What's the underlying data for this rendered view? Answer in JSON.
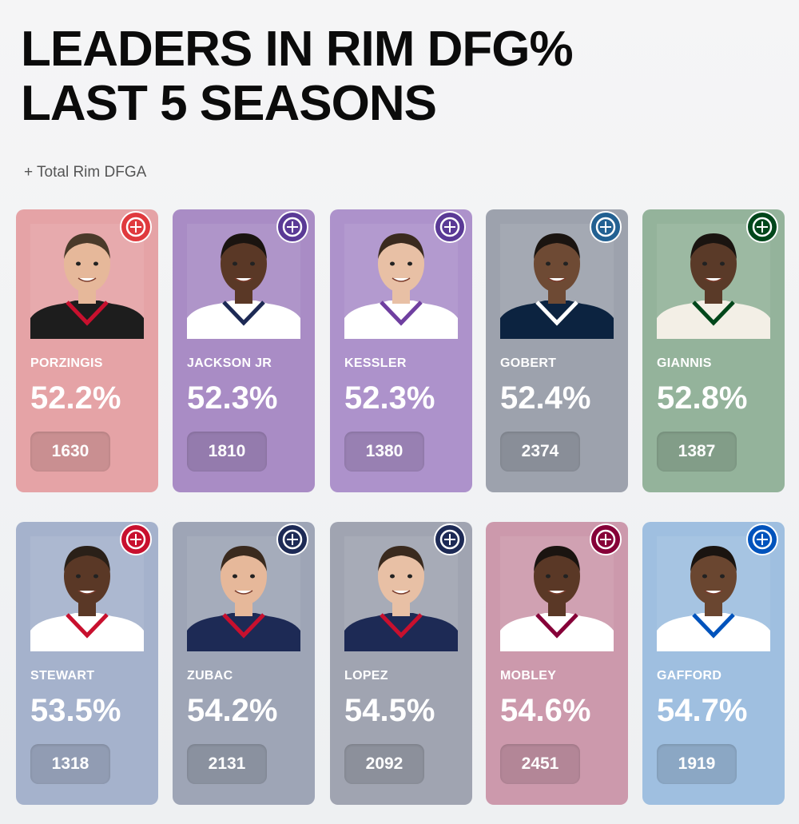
{
  "title_line1": "LEADERS IN RIM DFG%",
  "title_line2": "LAST 5 SEASONS",
  "subtitle": "+ Total Rim DFGA",
  "players": [
    {
      "name": "PORZINGIS",
      "pct": "52.2%",
      "dfga": "1630",
      "team": "hawks-logo-icon",
      "color": "#e5a3a6",
      "jersey": "#1d1d1d",
      "accent": "#c8102e",
      "skin": "#e6b89a",
      "hair": "#4a3a2a"
    },
    {
      "name": "JACKSON JR",
      "pct": "52.3%",
      "dfga": "1810",
      "team": "jazz-logo-icon",
      "color": "#a98cc5",
      "jersey": "#ffffff",
      "accent": "#1d2a55",
      "skin": "#5a3826",
      "hair": "#1a1410"
    },
    {
      "name": "KESSLER",
      "pct": "52.3%",
      "dfga": "1380",
      "team": "jazz-logo-icon",
      "color": "#ad92cb",
      "jersey": "#ffffff",
      "accent": "#6f3fa0",
      "skin": "#e8c0a5",
      "hair": "#3a2a1e"
    },
    {
      "name": "GOBERT",
      "pct": "52.4%",
      "dfga": "2374",
      "team": "timberwolves-logo-icon",
      "color": "#9da2ad",
      "jersey": "#0c2340",
      "accent": "#ffffff",
      "skin": "#6e4a34",
      "hair": "#1a1410"
    },
    {
      "name": "GIANNIS",
      "pct": "52.8%",
      "dfga": "1387",
      "team": "bucks-logo-icon",
      "color": "#94b39b",
      "jersey": "#f3efe6",
      "accent": "#00471b",
      "skin": "#5a3a28",
      "hair": "#1a1410"
    },
    {
      "name": "STEWART",
      "pct": "53.5%",
      "dfga": "1318",
      "team": "pistons-logo-icon",
      "color": "#a5b2cc",
      "jersey": "#ffffff",
      "accent": "#c8102e",
      "skin": "#5a3826",
      "hair": "#2a2018"
    },
    {
      "name": "ZUBAC",
      "pct": "54.2%",
      "dfga": "2131",
      "team": "clippers-logo-icon",
      "color": "#9ea5b6",
      "jersey": "#1d2a55",
      "accent": "#c8102e",
      "skin": "#e6b89a",
      "hair": "#3a2a1e"
    },
    {
      "name": "LOPEZ",
      "pct": "54.5%",
      "dfga": "2092",
      "team": "clippers-logo-icon",
      "color": "#a0a4b1",
      "jersey": "#1d2a55",
      "accent": "#c8102e",
      "skin": "#e8c0a5",
      "hair": "#3a2a1e"
    },
    {
      "name": "MOBLEY",
      "pct": "54.6%",
      "dfga": "2451",
      "team": "cavaliers-logo-icon",
      "color": "#cc99ac",
      "jersey": "#ffffff",
      "accent": "#860038",
      "skin": "#5a3826",
      "hair": "#1a1410"
    },
    {
      "name": "GAFFORD",
      "pct": "54.7%",
      "dfga": "1919",
      "team": "mavericks-logo-icon",
      "color": "#9fbfe0",
      "jersey": "#ffffff",
      "accent": "#0053bc",
      "skin": "#6a4630",
      "hair": "#1a1410"
    }
  ],
  "logo_colors": {
    "hawks-logo-icon": "#e03a3e",
    "jazz-logo-icon": "#5a3a96",
    "timberwolves-logo-icon": "#236192",
    "bucks-logo-icon": "#00471b",
    "pistons-logo-icon": "#c8102e",
    "clippers-logo-icon": "#1d2a55",
    "cavaliers-logo-icon": "#860038",
    "mavericks-logo-icon": "#0053bc"
  }
}
